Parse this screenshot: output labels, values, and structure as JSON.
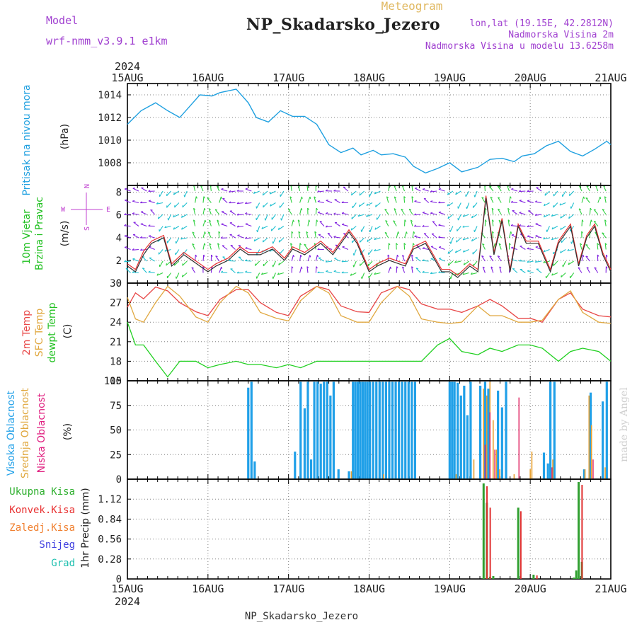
{
  "header": {
    "model_label": "Model",
    "model_name": "wrf-nmm_v3.9.1 e1km",
    "meteogram_label": "Meteogram",
    "station_title": "NP_Skadarsko_Jezero",
    "lonlat": "lon,lat (19.15E, 42.2812N)",
    "elevation": "Nadmorska Visina 2m",
    "model_elevation": "Nadmorska Visina u modelu 13.6258m",
    "footer_station": "NP_Skadarsko_Jezero",
    "watermark": "made by Angel"
  },
  "time_axis": {
    "year": "2024",
    "dates": [
      "15AUG",
      "16AUG",
      "17AUG",
      "18AUG",
      "19AUG",
      "20AUG",
      "21AUG"
    ]
  },
  "colors": {
    "pressure": "#1fa0e0",
    "temp": "#e84848",
    "sfc_temp": "#e0a840",
    "dewpoint": "#20d020",
    "cloud_high": "#20a0e8",
    "cloud_mid": "#e8a030",
    "cloud_low": "#e02060",
    "precip_total": "#30a030",
    "precip_conv": "#e03030",
    "precip_frozen": "#f08030",
    "snow": "#4040e0",
    "grad": "#20c0b0",
    "wind_purple": "#8020e0",
    "wind_green": "#30d040",
    "wind_cyan": "#20c0d0",
    "wind_speed_line": "#303030",
    "wind_gust": "#e83030",
    "title_purple": "#a040d0"
  },
  "chart_data": [
    {
      "type": "line",
      "title": "",
      "ylabel_left": "Pritisak na nivou mora",
      "ylabel": "(hPa)",
      "ylim": [
        1006,
        1015
      ],
      "yticks": [
        "1014",
        "1012",
        "1010",
        "1008"
      ],
      "x_day_offsets": [
        0,
        0.17,
        0.35,
        0.5,
        0.65,
        0.8,
        0.9,
        1.05,
        1.15,
        1.35,
        1.5,
        1.6,
        1.75,
        1.9,
        2.05,
        2.2,
        2.35,
        2.5,
        2.65,
        2.8,
        2.9,
        3.05,
        3.15,
        3.3,
        3.45,
        3.55,
        3.7,
        3.85,
        4.0,
        4.15,
        4.35,
        4.5,
        4.65,
        4.8,
        4.9,
        5.05,
        5.2,
        5.35,
        5.5,
        5.65,
        5.8,
        5.95,
        6.0
      ],
      "series": [
        {
          "values": [
            1011.4,
            1012.6,
            1013.3,
            1012.6,
            1012.0,
            1013.2,
            1014.0,
            1013.9,
            1014.2,
            1014.5,
            1013.3,
            1012.0,
            1011.6,
            1012.6,
            1012.1,
            1012.1,
            1011.4,
            1009.6,
            1008.9,
            1009.3,
            1008.7,
            1009.1,
            1008.7,
            1008.8,
            1008.5,
            1007.7,
            1007.1,
            1007.5,
            1008.0,
            1007.2,
            1007.6,
            1008.3,
            1008.4,
            1008.1,
            1008.6,
            1008.8,
            1009.5,
            1009.9,
            1009.0,
            1008.6,
            1009.2,
            1009.9,
            1009.6
          ]
        }
      ]
    },
    {
      "type": "line",
      "title": "",
      "ylabel_left": [
        "10m Vjetar",
        "Brzina i Pravac"
      ],
      "ylabel": "(m/s)",
      "ylim": [
        0,
        8.6
      ],
      "yticks": [
        "8",
        "6",
        "4",
        "2",
        "0"
      ],
      "compass": {
        "n": "N",
        "s": "S",
        "e": "E",
        "w": "W"
      },
      "x_day_offsets": [
        0,
        0.1,
        0.2,
        0.3,
        0.45,
        0.55,
        0.7,
        0.8,
        1.0,
        1.1,
        1.25,
        1.4,
        1.5,
        1.65,
        1.8,
        1.95,
        2.05,
        2.2,
        2.4,
        2.55,
        2.75,
        2.85,
        3.0,
        3.1,
        3.25,
        3.45,
        3.55,
        3.7,
        3.9,
        4.0,
        4.1,
        4.25,
        4.35,
        4.45,
        4.55,
        4.65,
        4.75,
        4.85,
        4.95,
        5.1,
        5.25,
        5.35,
        5.5,
        5.6,
        5.7,
        5.8,
        5.9,
        6.0
      ],
      "series": [
        {
          "name": "speed",
          "values": [
            1.5,
            1.0,
            2.5,
            3.5,
            4.0,
            1.5,
            2.5,
            2.0,
            1.0,
            1.5,
            2.0,
            3.0,
            2.5,
            2.5,
            3.0,
            2.0,
            3.0,
            2.5,
            3.5,
            2.5,
            4.5,
            3.5,
            1.0,
            1.5,
            2.0,
            1.5,
            3.0,
            3.5,
            1.0,
            1.0,
            0.5,
            1.5,
            1.0,
            7.5,
            2.5,
            5.5,
            1.0,
            5.0,
            3.5,
            3.5,
            1.0,
            3.5,
            5.0,
            1.5,
            4.0,
            5.0,
            2.5,
            1.0
          ]
        },
        {
          "name": "gust",
          "values": [
            1.7,
            1.2,
            2.8,
            3.7,
            4.2,
            1.7,
            2.7,
            2.2,
            1.2,
            1.7,
            2.2,
            3.2,
            2.7,
            2.7,
            3.2,
            2.2,
            3.2,
            2.7,
            3.7,
            2.7,
            4.7,
            3.7,
            1.2,
            1.7,
            2.2,
            1.7,
            3.2,
            3.7,
            1.2,
            1.2,
            0.7,
            1.7,
            1.2,
            7.7,
            2.7,
            5.7,
            1.2,
            5.2,
            3.7,
            3.7,
            1.2,
            3.7,
            5.2,
            1.7,
            4.2,
            5.2,
            2.7,
            1.2
          ]
        }
      ]
    },
    {
      "type": "line",
      "title": "",
      "ylabel_left": [
        "2m Temp",
        "SFC Temp",
        "dewpt Temp"
      ],
      "ylabel": "(C)",
      "ylim": [
        15,
        30
      ],
      "yticks": [
        "30",
        "27",
        "24",
        "21",
        "18",
        "15"
      ],
      "x_day_offsets": [
        0,
        0.1,
        0.2,
        0.35,
        0.5,
        0.65,
        0.85,
        1.0,
        1.15,
        1.35,
        1.5,
        1.65,
        1.85,
        2.0,
        2.15,
        2.35,
        2.5,
        2.65,
        2.85,
        3.0,
        3.15,
        3.35,
        3.5,
        3.65,
        3.85,
        4.0,
        4.15,
        4.35,
        4.5,
        4.65,
        4.85,
        5.0,
        5.15,
        5.35,
        5.5,
        5.65,
        5.85,
        6.0
      ],
      "series": [
        {
          "name": "2m",
          "values": [
            26.3,
            28.5,
            27.6,
            29.4,
            28.8,
            27.0,
            25.6,
            25.0,
            27.5,
            29.0,
            29.0,
            27.0,
            25.5,
            25.0,
            28.0,
            29.5,
            29.0,
            26.5,
            25.6,
            25.5,
            28.5,
            29.5,
            29.0,
            26.8,
            26.0,
            26.0,
            25.5,
            26.5,
            27.5,
            26.5,
            24.6,
            24.6,
            24.0,
            27.5,
            28.5,
            26.0,
            25.0,
            24.8
          ]
        },
        {
          "name": "sfc",
          "values": [
            27.8,
            24.5,
            24.0,
            27.0,
            29.5,
            28.0,
            24.8,
            24.0,
            27.0,
            29.5,
            28.5,
            25.5,
            24.6,
            24.2,
            27.3,
            29.5,
            28.5,
            25.0,
            24.0,
            24.0,
            27.0,
            29.5,
            28.0,
            24.5,
            24.0,
            23.8,
            24.0,
            26.5,
            25.0,
            25.0,
            24.0,
            24.0,
            24.3,
            27.5,
            28.8,
            25.5,
            24.0,
            23.8
          ]
        },
        {
          "name": "dewpt",
          "values": [
            24.0,
            20.5,
            20.5,
            18.0,
            15.6,
            18.0,
            18.0,
            17.0,
            17.5,
            18.0,
            17.5,
            17.5,
            17.0,
            17.5,
            17.0,
            18.0,
            18.0,
            18.0,
            18.0,
            18.0,
            18.0,
            18.0,
            18.0,
            18.0,
            20.5,
            21.5,
            19.5,
            19.0,
            20.0,
            19.5,
            20.5,
            20.5,
            20.0,
            18.0,
            19.5,
            20.0,
            19.5,
            18.0
          ]
        }
      ]
    },
    {
      "type": "bar",
      "title": "",
      "ylabel_left": [
        "Visoka Oblacnost",
        "Srednja Oblacnost",
        "Niska Oblacnost"
      ],
      "ylabel": "(%)",
      "ylim": [
        0,
        100
      ],
      "yticks": [
        "100",
        "75",
        "50",
        "25",
        "0"
      ],
      "series": [
        {
          "name": "Visoka Oblacnost",
          "x_day_offsets": [
            1.5,
            1.54,
            1.58,
            2.08,
            2.15,
            2.2,
            2.24,
            2.28,
            2.32,
            2.36,
            2.4,
            2.44,
            2.48,
            2.52,
            2.56,
            2.62,
            2.75,
            2.8,
            2.83,
            2.86,
            2.89,
            2.92,
            2.95,
            2.98,
            3.01,
            3.05,
            3.09,
            3.13,
            3.17,
            3.21,
            3.25,
            3.29,
            3.33,
            3.37,
            3.41,
            3.45,
            3.49,
            3.53,
            3.57,
            4.0,
            4.03,
            4.06,
            4.1,
            4.14,
            4.18,
            4.22,
            4.26,
            4.38,
            4.44,
            4.48,
            4.6,
            4.65,
            4.7,
            5.17,
            5.22,
            5.25,
            5.3,
            5.67,
            5.75,
            5.9,
            5.95
          ],
          "values": [
            93,
            99,
            18,
            28,
            99,
            72,
            99,
            20,
            99,
            99,
            97,
            99,
            99,
            85,
            99,
            10,
            8,
            99,
            99,
            99,
            99,
            99,
            99,
            99,
            99,
            99,
            99,
            99,
            99,
            99,
            99,
            99,
            99,
            99,
            99,
            99,
            99,
            99,
            99,
            99,
            99,
            99,
            98,
            85,
            95,
            65,
            99,
            95,
            99,
            92,
            90,
            73,
            99,
            27,
            16,
            99,
            99,
            10,
            88,
            79,
            99
          ]
        },
        {
          "name": "Srednja Oblacnost",
          "x_day_offsets": [
            2.78,
            3.18,
            4.08,
            4.3,
            4.42,
            4.46,
            4.5,
            4.54,
            4.58,
            4.62,
            4.8,
            5.0,
            5.02,
            5.28,
            5.68,
            5.73,
            5.76,
            5.93
          ],
          "values": [
            8,
            5,
            5,
            20,
            92,
            85,
            99,
            60,
            30,
            10,
            5,
            10,
            28,
            20,
            10,
            85,
            55,
            12
          ]
        },
        {
          "name": "Niska Oblacnost",
          "x_day_offsets": [
            4.44,
            4.5,
            4.56,
            4.86,
            5.27,
            5.78
          ],
          "values": [
            35,
            68,
            30,
            83,
            12,
            20
          ]
        }
      ]
    },
    {
      "type": "bar",
      "title": "",
      "ylabel": "1hr Precip (mm)",
      "ylim": [
        0,
        1.4
      ],
      "yticks": [
        "1.12",
        "0.84",
        "0.56",
        "0.28",
        "0"
      ],
      "legend": [
        "Ukupna Kisa",
        "Konvek.Kisa",
        "Zaledj.Kisa",
        "Snijeg",
        "Grad"
      ],
      "series": [
        {
          "name": "Ukupna Kisa",
          "x_day_offsets": [
            4.43,
            4.47,
            4.51,
            4.55,
            4.86,
            5.05,
            5.55,
            5.58,
            5.61,
            5.65
          ],
          "values": [
            1.34,
            1.07,
            0.03,
            0.04,
            1.0,
            0.06,
            0.02,
            0.12,
            1.36,
            0.24
          ]
        },
        {
          "name": "Konvek.Kisa",
          "x_day_offsets": [
            4.45,
            4.49,
            4.87,
            5.07,
            5.63
          ],
          "values": [
            1.3,
            1.0,
            0.95,
            0.05,
            1.32
          ]
        }
      ]
    }
  ]
}
